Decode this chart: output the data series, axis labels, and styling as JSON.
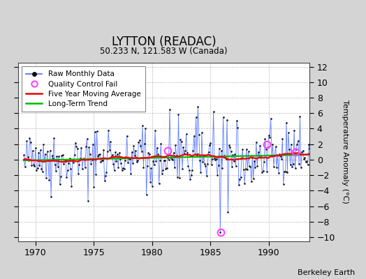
{
  "title": "LYTTON (READAC)",
  "subtitle": "50.233 N, 121.583 W (Canada)",
  "ylabel": "Temperature Anomaly (°C)",
  "attribution": "Berkeley Earth",
  "xlim": [
    1968.5,
    1993.5
  ],
  "ylim": [
    -10.5,
    12.5
  ],
  "yticks": [
    -10,
    -8,
    -6,
    -4,
    -2,
    0,
    2,
    4,
    6,
    8,
    10,
    12
  ],
  "xticks": [
    1970,
    1975,
    1980,
    1985,
    1990
  ],
  "background_color": "#d4d4d4",
  "plot_bg_color": "#ffffff",
  "grid_color": "#bbbbbb",
  "raw_color": "#4466ff",
  "raw_dot_color": "#111111",
  "ma_color": "#ee0000",
  "trend_color": "#00bb00",
  "qc_color": "#ff44ff",
  "seed": 42,
  "start_year": 1969.0,
  "n_months": 300
}
